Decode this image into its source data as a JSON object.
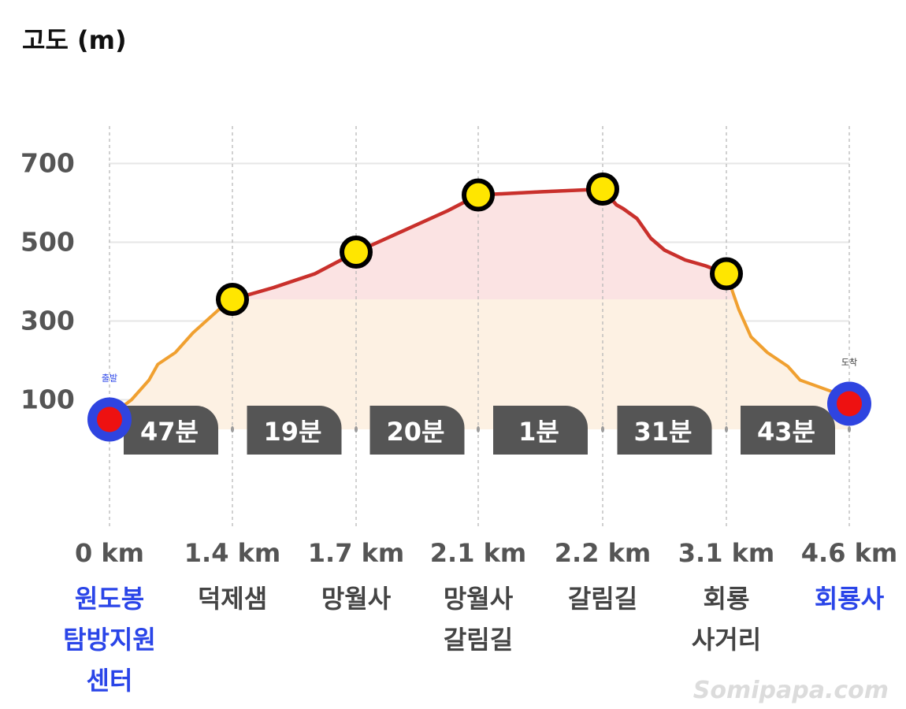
{
  "chart_data": {
    "type": "area",
    "ylabel": "고도 (m)",
    "y_ticks": [
      "700",
      "500",
      "300",
      "100"
    ],
    "y_tick_values": [
      700,
      500,
      300,
      100
    ],
    "grid": true,
    "profile": [
      {
        "x": 0.0,
        "y": 50
      },
      {
        "x": 0.1,
        "y": 75
      },
      {
        "x": 0.25,
        "y": 100
      },
      {
        "x": 0.45,
        "y": 150
      },
      {
        "x": 0.55,
        "y": 190
      },
      {
        "x": 0.75,
        "y": 220
      },
      {
        "x": 0.95,
        "y": 270
      },
      {
        "x": 1.1,
        "y": 300
      },
      {
        "x": 1.25,
        "y": 330
      },
      {
        "x": 1.4,
        "y": 355
      },
      {
        "x": 1.5,
        "y": 385
      },
      {
        "x": 1.6,
        "y": 420
      },
      {
        "x": 1.7,
        "y": 475
      },
      {
        "x": 1.8,
        "y": 510
      },
      {
        "x": 1.9,
        "y": 545
      },
      {
        "x": 2.0,
        "y": 580
      },
      {
        "x": 2.1,
        "y": 620
      },
      {
        "x": 2.15,
        "y": 628
      },
      {
        "x": 2.2,
        "y": 635
      },
      {
        "x": 2.3,
        "y": 595
      },
      {
        "x": 2.35,
        "y": 585
      },
      {
        "x": 2.45,
        "y": 560
      },
      {
        "x": 2.55,
        "y": 510
      },
      {
        "x": 2.65,
        "y": 480
      },
      {
        "x": 2.8,
        "y": 455
      },
      {
        "x": 2.95,
        "y": 440
      },
      {
        "x": 3.1,
        "y": 420
      },
      {
        "x": 3.25,
        "y": 330
      },
      {
        "x": 3.4,
        "y": 260
      },
      {
        "x": 3.6,
        "y": 220
      },
      {
        "x": 3.85,
        "y": 185
      },
      {
        "x": 4.0,
        "y": 150
      },
      {
        "x": 4.2,
        "y": 135
      },
      {
        "x": 4.4,
        "y": 120
      },
      {
        "x": 4.6,
        "y": 90
      }
    ],
    "waypoints": [
      {
        "dist": "0 km",
        "x": 0.0,
        "elev": 50,
        "name": [
          "원도봉",
          "탐방지원",
          "센터"
        ],
        "kind": "endpoint",
        "note": "출발"
      },
      {
        "dist": "1.4 km",
        "x": 1.4,
        "elev": 355,
        "name": [
          "덕제샘"
        ],
        "kind": "mid"
      },
      {
        "dist": "1.7 km",
        "x": 1.7,
        "elev": 475,
        "name": [
          "망월사"
        ],
        "kind": "mid"
      },
      {
        "dist": "2.1 km",
        "x": 2.1,
        "elev": 620,
        "name": [
          "망월사",
          "갈림길"
        ],
        "kind": "mid"
      },
      {
        "dist": "2.2 km",
        "x": 2.2,
        "elev": 635,
        "name": [
          "갈림길"
        ],
        "kind": "mid"
      },
      {
        "dist": "3.1 km",
        "x": 3.1,
        "elev": 420,
        "name": [
          "회룡",
          "사거리"
        ],
        "kind": "mid"
      },
      {
        "dist": "4.6 km",
        "x": 4.6,
        "elev": 90,
        "name": [
          "회룡사"
        ],
        "kind": "endpoint",
        "note": "도착"
      }
    ],
    "segments": [
      "47분",
      "19분",
      "20분",
      "1분",
      "31분",
      "43분"
    ]
  },
  "colors": {
    "steep": "#c9302c",
    "gentle": "#f0a030",
    "fill_upper": "#fbe3e3",
    "fill_lower": "#fdf1e3",
    "midpoint": "#ffe600",
    "endpoint_fill": "#ee1111",
    "endpoint_ring": "#2f44e0",
    "pill": "#555555",
    "grid": "#e6e6e6",
    "endpoint_label": "#2a45e8"
  },
  "watermark": "Somipapa.com"
}
